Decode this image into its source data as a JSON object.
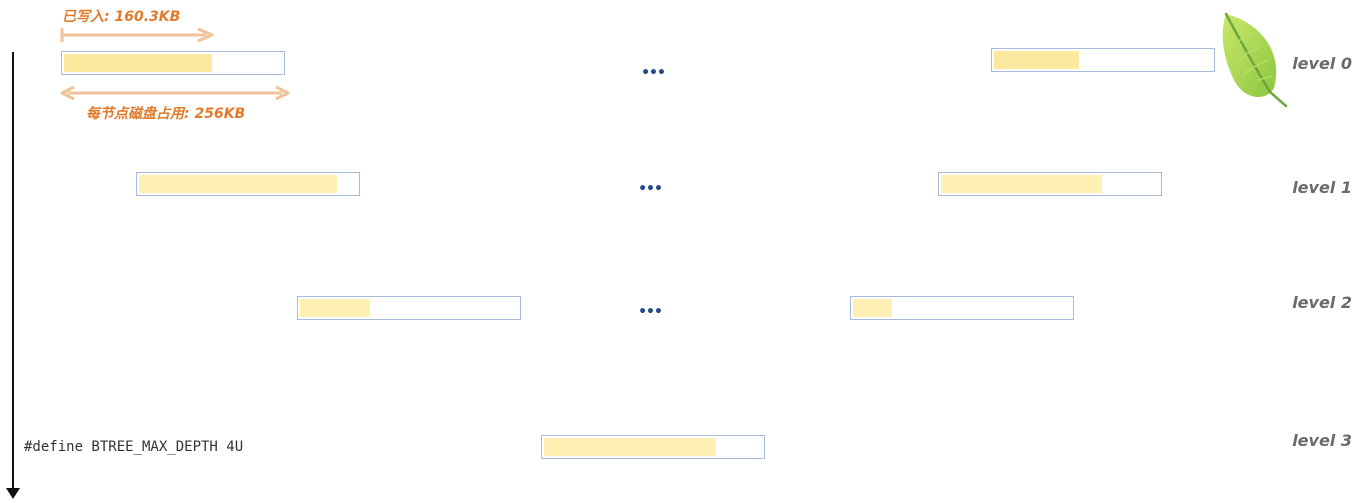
{
  "annotations": {
    "written_label": "已写入: 160.3KB",
    "node_size_label": "每节点磁盘占用: 256KB"
  },
  "ellipsis": "•••",
  "levels": [
    {
      "label": "level 0",
      "nodes": [
        {
          "fill_fraction": 0.68
        },
        {
          "fill_fraction": 0.39
        }
      ]
    },
    {
      "label": "level 1",
      "nodes": [
        {
          "fill_fraction": 0.91
        },
        {
          "fill_fraction": 0.74
        }
      ]
    },
    {
      "label": "level 2",
      "nodes": [
        {
          "fill_fraction": 0.32
        },
        {
          "fill_fraction": 0.18
        }
      ]
    },
    {
      "label": "level 3",
      "nodes": [
        {
          "fill_fraction": 0.79
        }
      ]
    }
  ],
  "code": "#define BTREE_MAX_DEPTH 4U",
  "icons": {
    "leaf": "leaf-icon"
  },
  "colors": {
    "annotation": "#e07b2b",
    "arrow": "#f0c39a",
    "node_border": "#a8bad9",
    "node_fill": "#fdf0b2",
    "ellipsis": "#244a8c",
    "leaf_green": "#9fcf3c"
  }
}
